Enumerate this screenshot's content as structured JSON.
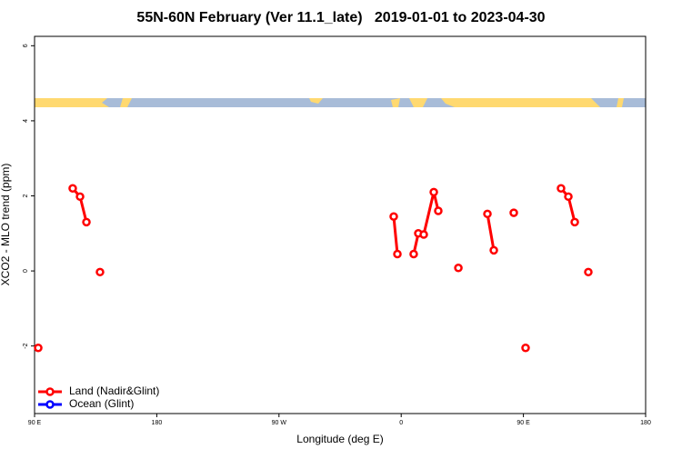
{
  "chart_data": {
    "type": "line",
    "title": "55N-60N February (Ver 11.1_late)   2019-01-01 to 2023-04-30",
    "x_label": "Longitude (deg E)",
    "y_label": "XCO2 - MLO trend (ppm)",
    "xlim": [
      90,
      540
    ],
    "xticks": [
      {
        "value": 90,
        "label": "90 E"
      },
      180,
      {
        "value": 270,
        "label": "90 W"
      },
      {
        "value": 360,
        "label": "0"
      },
      {
        "value": 450,
        "label": "90 E"
      },
      {
        "value": 540,
        "label": "180"
      }
    ],
    "ylim": [
      -3.8,
      6.25
    ],
    "yticks": [
      -2,
      0,
      2,
      4,
      6
    ],
    "legend": "bottom-left",
    "series": [
      {
        "name": "Land (Nadir&Glint)",
        "color": "#ff0000",
        "x": [
          92.7,
          null,
          118.1,
          123.5,
          128.2,
          null,
          138.2,
          null,
          354.5,
          357.2,
          null,
          369.2,
          372.6,
          376.6,
          384.0,
          387.3,
          null,
          402.1,
          null,
          423.5,
          428.2,
          null,
          442.9,
          null,
          451.6,
          null,
          477.7,
          483.1,
          487.8,
          null,
          497.8
        ],
        "values": [
          -2.05,
          null,
          2.2,
          1.98,
          1.3,
          null,
          -0.03,
          null,
          1.45,
          0.45,
          null,
          0.45,
          1.0,
          0.97,
          2.1,
          1.6,
          null,
          0.08,
          null,
          1.52,
          0.55,
          null,
          1.55,
          null,
          -2.05,
          null,
          2.2,
          1.98,
          1.3,
          null,
          -0.03
        ]
      },
      {
        "name": "Ocean (Glint)",
        "color": "#0000ff",
        "x": [],
        "values": []
      }
    ]
  }
}
